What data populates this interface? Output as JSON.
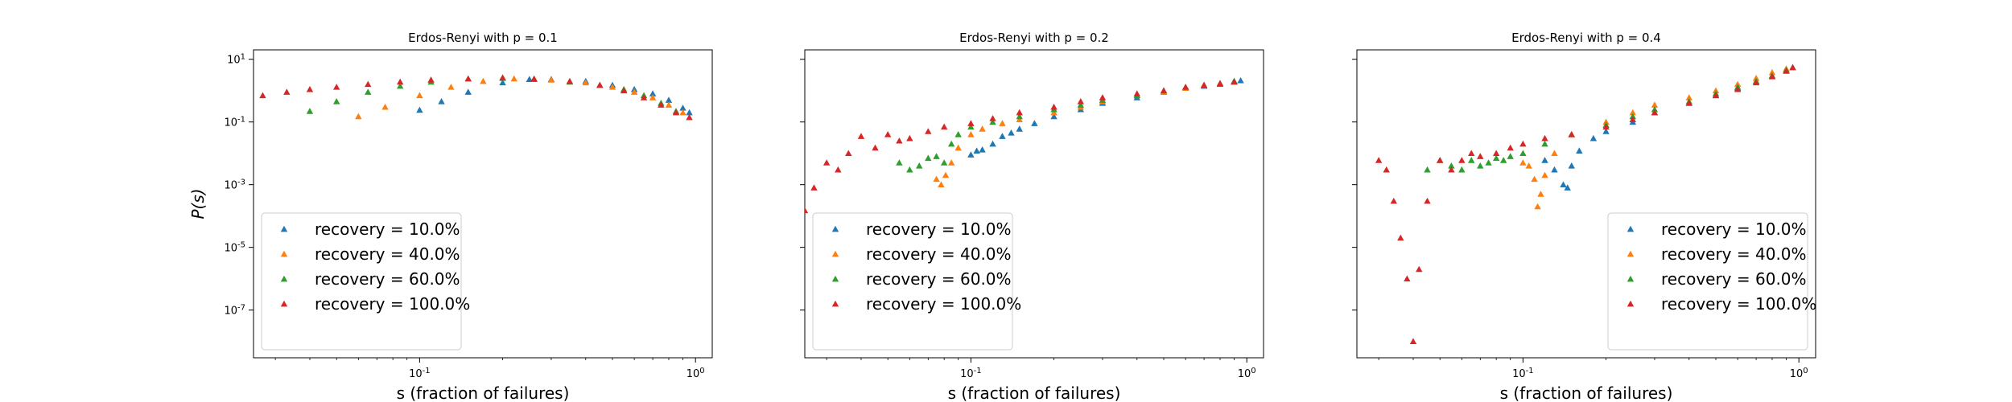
{
  "chart_data": [
    {
      "type": "scatter",
      "title": "Erdos-Renyi with p = 0.1",
      "xlabel": "s (fraction of failures)",
      "ylabel": "P(s)",
      "xscale": "log",
      "yscale": "log",
      "xlim": [
        0.025,
        1.15
      ],
      "ylim": [
        3e-09,
        20
      ],
      "xticks": [
        "10^{-1}",
        "10^{0}"
      ],
      "yticks": [
        "10^{1}",
        "10^{-1}",
        "10^{-3}",
        "10^{-5}",
        "10^{-7}"
      ],
      "legend_position": "lower-left",
      "marker": "triangle",
      "series": [
        {
          "name": "recovery = 10.0%",
          "color": "#1f77b4",
          "x": [
            0.1,
            0.12,
            0.15,
            0.2,
            0.25,
            0.3,
            0.4,
            0.5,
            0.6,
            0.7,
            0.8,
            0.9,
            0.95
          ],
          "y": [
            0.24,
            0.45,
            0.9,
            1.8,
            2.3,
            2.3,
            2.0,
            1.5,
            1.1,
            0.8,
            0.5,
            0.28,
            0.2
          ]
        },
        {
          "name": "recovery = 40.0%",
          "color": "#ff7f0e",
          "x": [
            0.06,
            0.075,
            0.1,
            0.13,
            0.17,
            0.22,
            0.3,
            0.4,
            0.5,
            0.6,
            0.7,
            0.8,
            0.9
          ],
          "y": [
            0.15,
            0.3,
            0.7,
            1.3,
            2.0,
            2.4,
            2.2,
            1.8,
            1.3,
            0.9,
            0.6,
            0.35,
            0.2
          ]
        },
        {
          "name": "recovery = 60.0%",
          "color": "#2ca02c",
          "x": [
            0.04,
            0.05,
            0.065,
            0.085,
            0.11,
            0.15,
            0.2,
            0.26,
            0.35,
            0.45,
            0.55,
            0.65,
            0.75,
            0.85
          ],
          "y": [
            0.22,
            0.45,
            0.9,
            1.4,
            1.9,
            2.4,
            2.5,
            2.3,
            1.9,
            1.5,
            1.1,
            0.7,
            0.4,
            0.22
          ]
        },
        {
          "name": "recovery = 100.0%",
          "color": "#d62728",
          "x": [
            0.027,
            0.033,
            0.04,
            0.05,
            0.065,
            0.085,
            0.11,
            0.15,
            0.2,
            0.26,
            0.35,
            0.45,
            0.55,
            0.65,
            0.75,
            0.85,
            0.95
          ],
          "y": [
            0.7,
            0.9,
            1.1,
            1.3,
            1.6,
            1.9,
            2.2,
            2.4,
            2.6,
            2.4,
            2.0,
            1.5,
            1.0,
            0.6,
            0.35,
            0.2,
            0.14
          ]
        }
      ]
    },
    {
      "type": "scatter",
      "title": "Erdos-Renyi with p = 0.2",
      "xlabel": "s (fraction of failures)",
      "ylabel": "",
      "xscale": "log",
      "yscale": "log",
      "xlim": [
        0.025,
        1.15
      ],
      "ylim": [
        3e-09,
        20
      ],
      "xticks": [
        "10^{-1}",
        "10^{0}"
      ],
      "yticks": [],
      "legend_position": "lower-left",
      "marker": "triangle",
      "series": [
        {
          "name": "recovery = 10.0%",
          "color": "#1f77b4",
          "x": [
            0.1,
            0.105,
            0.11,
            0.12,
            0.13,
            0.14,
            0.15,
            0.17,
            0.2,
            0.25,
            0.3,
            0.4,
            0.5,
            0.6,
            0.7,
            0.8,
            0.9,
            0.95
          ],
          "y": [
            0.009,
            0.012,
            0.013,
            0.02,
            0.035,
            0.045,
            0.06,
            0.09,
            0.15,
            0.25,
            0.4,
            0.6,
            0.9,
            1.2,
            1.4,
            1.6,
            2.0,
            2.1
          ]
        },
        {
          "name": "recovery = 40.0%",
          "color": "#ff7f0e",
          "x": [
            0.075,
            0.078,
            0.081,
            0.085,
            0.09,
            0.1,
            0.11,
            0.13,
            0.15,
            0.2,
            0.25,
            0.3,
            0.4,
            0.5,
            0.6,
            0.7,
            0.8,
            0.9
          ],
          "y": [
            0.0015,
            0.001,
            0.002,
            0.005,
            0.015,
            0.04,
            0.06,
            0.09,
            0.12,
            0.2,
            0.3,
            0.45,
            0.7,
            0.9,
            1.2,
            1.5,
            1.7,
            1.9
          ]
        },
        {
          "name": "recovery = 60.0%",
          "color": "#2ca02c",
          "x": [
            0.055,
            0.06,
            0.065,
            0.07,
            0.075,
            0.08,
            0.085,
            0.09,
            0.1,
            0.12,
            0.15,
            0.2,
            0.25,
            0.3,
            0.4,
            0.5,
            0.6,
            0.7,
            0.8,
            0.9
          ],
          "y": [
            0.005,
            0.003,
            0.004,
            0.007,
            0.008,
            0.005,
            0.02,
            0.04,
            0.07,
            0.1,
            0.15,
            0.25,
            0.35,
            0.5,
            0.7,
            1.0,
            1.3,
            1.5,
            1.7,
            2.0
          ]
        },
        {
          "name": "recovery = 100.0%",
          "color": "#d62728",
          "x": [
            0.025,
            0.027,
            0.03,
            0.033,
            0.036,
            0.04,
            0.045,
            0.05,
            0.055,
            0.06,
            0.07,
            0.08,
            0.1,
            0.12,
            0.15,
            0.2,
            0.25,
            0.3,
            0.4,
            0.5,
            0.6,
            0.7,
            0.8,
            0.9
          ],
          "y": [
            0.00015,
            0.0008,
            0.005,
            0.003,
            0.01,
            0.035,
            0.015,
            0.04,
            0.025,
            0.03,
            0.05,
            0.07,
            0.09,
            0.13,
            0.2,
            0.3,
            0.45,
            0.6,
            0.8,
            1.0,
            1.3,
            1.5,
            1.7,
            1.9
          ]
        }
      ]
    },
    {
      "type": "scatter",
      "title": "Erdos-Renyi with p = 0.4",
      "xlabel": "s (fraction of failures)",
      "ylabel": "",
      "xscale": "log",
      "yscale": "log",
      "xlim": [
        0.025,
        1.15
      ],
      "ylim": [
        3e-09,
        20
      ],
      "xticks": [
        "10^{-1}",
        "10^{0}"
      ],
      "yticks": [],
      "legend_position": "lower-right",
      "marker": "triangle",
      "series": [
        {
          "name": "recovery = 10.0%",
          "color": "#1f77b4",
          "x": [
            0.12,
            0.13,
            0.14,
            0.145,
            0.15,
            0.16,
            0.18,
            0.2,
            0.25,
            0.3,
            0.4,
            0.5,
            0.6,
            0.7,
            0.8,
            0.9,
            0.95
          ],
          "y": [
            0.006,
            0.003,
            0.001,
            0.0008,
            0.004,
            0.012,
            0.03,
            0.05,
            0.1,
            0.2,
            0.4,
            0.7,
            1.2,
            2.0,
            3.0,
            4.5,
            5.5
          ]
        },
        {
          "name": "recovery = 40.0%",
          "color": "#ff7f0e",
          "x": [
            0.1,
            0.105,
            0.11,
            0.113,
            0.116,
            0.12,
            0.13,
            0.15,
            0.2,
            0.25,
            0.3,
            0.4,
            0.5,
            0.6,
            0.7,
            0.8,
            0.9
          ],
          "y": [
            0.005,
            0.004,
            0.0015,
            0.0002,
            0.0005,
            0.002,
            0.01,
            0.04,
            0.1,
            0.2,
            0.35,
            0.6,
            1.0,
            1.6,
            2.5,
            3.8,
            5.0
          ]
        },
        {
          "name": "recovery = 60.0%",
          "color": "#2ca02c",
          "x": [
            0.045,
            0.05,
            0.055,
            0.06,
            0.065,
            0.07,
            0.075,
            0.08,
            0.085,
            0.09,
            0.1,
            0.12,
            0.15,
            0.2,
            0.25,
            0.3,
            0.4,
            0.5,
            0.6,
            0.7,
            0.8,
            0.9
          ],
          "y": [
            0.003,
            0.006,
            0.004,
            0.003,
            0.006,
            0.004,
            0.005,
            0.007,
            0.006,
            0.008,
            0.01,
            0.02,
            0.04,
            0.08,
            0.15,
            0.25,
            0.45,
            0.8,
            1.3,
            2.0,
            3.0,
            4.5
          ]
        },
        {
          "name": "recovery = 100.0%",
          "color": "#d62728",
          "x": [
            0.03,
            0.032,
            0.034,
            0.036,
            0.038,
            0.04,
            0.042,
            0.045,
            0.05,
            0.055,
            0.06,
            0.065,
            0.07,
            0.08,
            0.09,
            0.1,
            0.12,
            0.15,
            0.2,
            0.25,
            0.3,
            0.4,
            0.5,
            0.6,
            0.7,
            0.8,
            0.9,
            0.95
          ],
          "y": [
            0.006,
            0.003,
            0.0003,
            2e-05,
            1e-06,
            1e-08,
            2e-06,
            0.0003,
            0.006,
            0.003,
            0.006,
            0.01,
            0.008,
            0.01,
            0.015,
            0.02,
            0.03,
            0.04,
            0.07,
            0.12,
            0.2,
            0.4,
            0.7,
            1.1,
            1.8,
            2.8,
            4.2,
            5.5
          ]
        }
      ]
    }
  ]
}
